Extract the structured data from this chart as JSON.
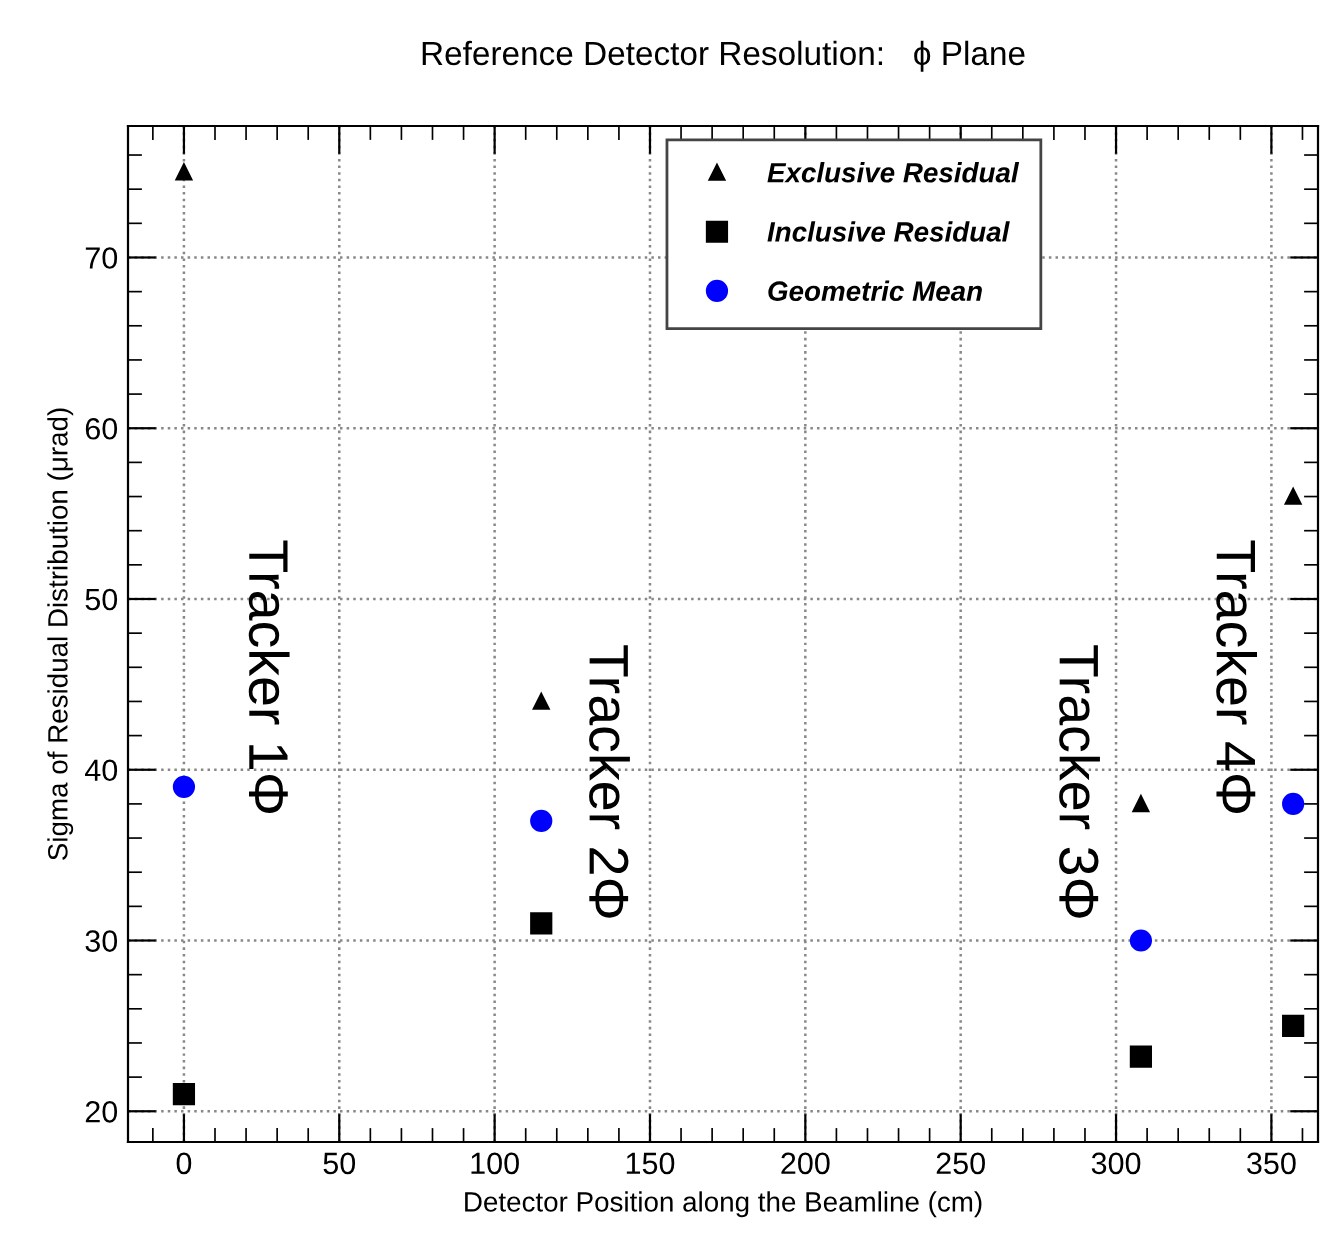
{
  "chart_data": {
    "type": "scatter",
    "title": "Reference Detector Resolution:   ϕ Plane",
    "xlabel": "Detector Position along the Beamline (cm)",
    "ylabel": "Sigma of Residual Distribution (μrad)",
    "x": [
      0,
      115,
      308,
      357
    ],
    "series": [
      {
        "name": "Exclusive Residual",
        "color": "#000000",
        "marker": "triangle",
        "values": [
          75,
          44,
          38,
          56
        ]
      },
      {
        "name": "Inclusive Residual",
        "color": "#000000",
        "marker": "square",
        "values": [
          21,
          31,
          23.2,
          25
        ]
      },
      {
        "name": "Geometric Mean",
        "color": "#0000ff",
        "marker": "circle",
        "values": [
          39,
          37,
          30,
          38
        ]
      }
    ],
    "annotations": [
      "Tracker 1Φ",
      "Tracker 2Φ",
      "Tracker 3Φ",
      "Tracker 4Φ"
    ],
    "xlim": [
      -18,
      365
    ],
    "ylim": [
      18.2,
      77.7
    ],
    "xticks": [
      0,
      50,
      100,
      150,
      200,
      250,
      300,
      350
    ],
    "yticks": [
      20,
      30,
      40,
      50,
      60,
      70
    ],
    "grid": true,
    "legend": "top"
  }
}
